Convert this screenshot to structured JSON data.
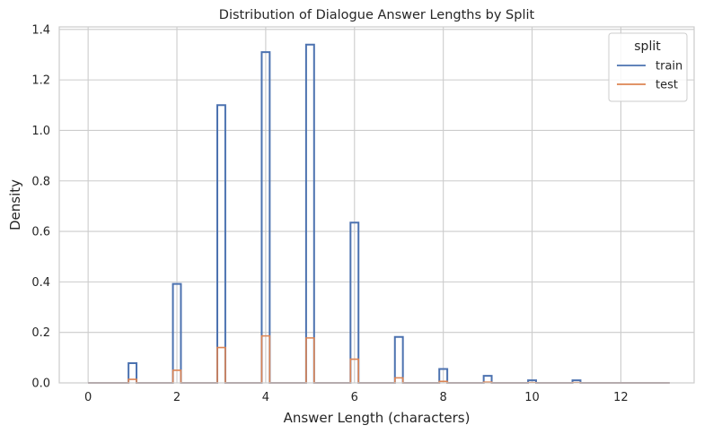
{
  "chart_data": {
    "type": "histogram-step",
    "title": "Distribution of Dialogue Answer Lengths by Split",
    "xlabel": "Answer Length (characters)",
    "ylabel": "Density",
    "xlim": [
      -0.65,
      13.65
    ],
    "ylim": [
      0,
      1.41
    ],
    "xticks": [
      0,
      2,
      4,
      6,
      8,
      10,
      12
    ],
    "yticks": [
      0.0,
      0.2,
      0.4,
      0.6,
      0.8,
      1.0,
      1.2,
      1.4
    ],
    "grid": true,
    "legend": {
      "title": "split",
      "placement": "top-right"
    },
    "bin_width": 0.18,
    "series": [
      {
        "name": "train",
        "color": "#4c72b0",
        "x": [
          1,
          2,
          3,
          4,
          5,
          6,
          7,
          8,
          9,
          10,
          11
        ],
        "values": [
          0.078,
          0.392,
          1.1,
          1.31,
          1.34,
          0.635,
          0.182,
          0.055,
          0.028,
          0.01,
          0.01
        ]
      },
      {
        "name": "test",
        "color": "#dd8452",
        "x": [
          1,
          2,
          3,
          4,
          5,
          6,
          7,
          8,
          9,
          10,
          11
        ],
        "values": [
          0.014,
          0.05,
          0.14,
          0.186,
          0.178,
          0.094,
          0.02,
          0.006,
          0.003,
          0.001,
          0.001
        ]
      }
    ]
  }
}
